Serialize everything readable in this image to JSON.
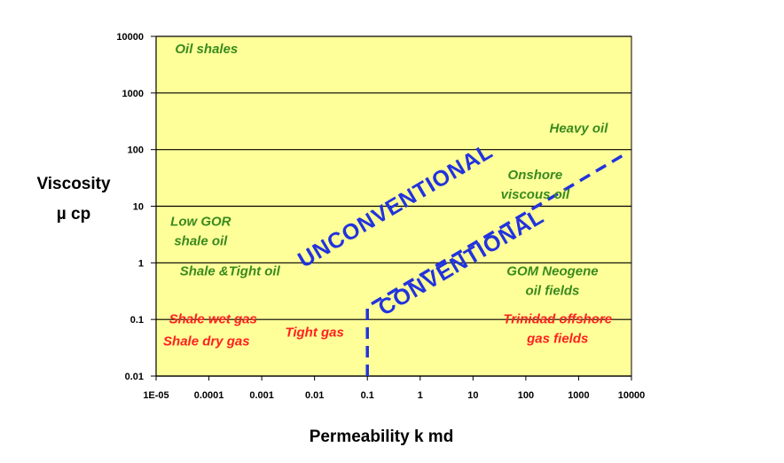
{
  "chart_data": {
    "type": "scatter",
    "title": "",
    "xlabel": "Permeability k md",
    "ylabel_line1": "Viscosity",
    "ylabel_line2": "µ cp",
    "x_scale": "log",
    "y_scale": "log",
    "xlim": [
      1e-05,
      10000
    ],
    "ylim": [
      0.01,
      10000
    ],
    "x_ticks": [
      {
        "value": 1e-05,
        "label": "1E-05"
      },
      {
        "value": 0.0001,
        "label": "0.0001"
      },
      {
        "value": 0.001,
        "label": "0.001"
      },
      {
        "value": 0.01,
        "label": "0.01"
      },
      {
        "value": 0.1,
        "label": "0.1"
      },
      {
        "value": 1,
        "label": "1"
      },
      {
        "value": 10,
        "label": "10"
      },
      {
        "value": 100,
        "label": "100"
      },
      {
        "value": 1000,
        "label": "1000"
      },
      {
        "value": 10000,
        "label": "10000"
      }
    ],
    "y_ticks": [
      {
        "value": 0.01,
        "label": "0.01"
      },
      {
        "value": 0.1,
        "label": "0.1"
      },
      {
        "value": 1,
        "label": "1"
      },
      {
        "value": 10,
        "label": "10"
      },
      {
        "value": 100,
        "label": "100"
      },
      {
        "value": 1000,
        "label": "1000"
      },
      {
        "value": 10000,
        "label": "10000"
      }
    ],
    "grid": "horizontal",
    "plot_background": "#ffff99",
    "boundary_line": {
      "style": "dashed",
      "color": "#2233dd",
      "points": [
        [
          0.1,
          0.01
        ],
        [
          0.1,
          0.17
        ],
        [
          7000,
          80
        ]
      ]
    },
    "region_labels": [
      {
        "lines": [
          "Oil shales"
        ],
        "x": 9e-05,
        "y": 5000,
        "color": "#3a8a1e"
      },
      {
        "lines": [
          "Heavy oil"
        ],
        "x": 1000,
        "y": 200,
        "color": "#3a8a1e"
      },
      {
        "lines": [
          "Onshore",
          "viscous oil"
        ],
        "x": 150,
        "y": 30,
        "color": "#3a8a1e"
      },
      {
        "lines": [
          "Low GOR",
          "shale oil"
        ],
        "x": 7e-05,
        "y": 4.5,
        "color": "#3a8a1e"
      },
      {
        "lines": [
          "Shale &Tight oil"
        ],
        "x": 0.00025,
        "y": 0.6,
        "color": "#3a8a1e"
      },
      {
        "lines": [
          "GOM Neogene",
          "oil fields"
        ],
        "x": 320,
        "y": 0.6,
        "color": "#3a8a1e"
      },
      {
        "lines": [
          "Shale wet gas"
        ],
        "x": 0.00012,
        "y": 0.085,
        "color": "#ff2020"
      },
      {
        "lines": [
          "Shale dry gas"
        ],
        "x": 9e-05,
        "y": 0.035,
        "color": "#ff2020"
      },
      {
        "lines": [
          "Tight gas"
        ],
        "x": 0.01,
        "y": 0.05,
        "color": "#ff2020"
      },
      {
        "lines": [
          "Trinidad offshore",
          "gas fields"
        ],
        "x": 400,
        "y": 0.085,
        "color": "#ff2020"
      }
    ],
    "zone_labels": [
      {
        "text": "UNCONVENTIONAL",
        "x": 0.4,
        "y": 8,
        "color": "#2233dd"
      },
      {
        "text": "CONVENTIONAL",
        "x": 7,
        "y": 0.8,
        "color": "#2233dd"
      }
    ]
  }
}
